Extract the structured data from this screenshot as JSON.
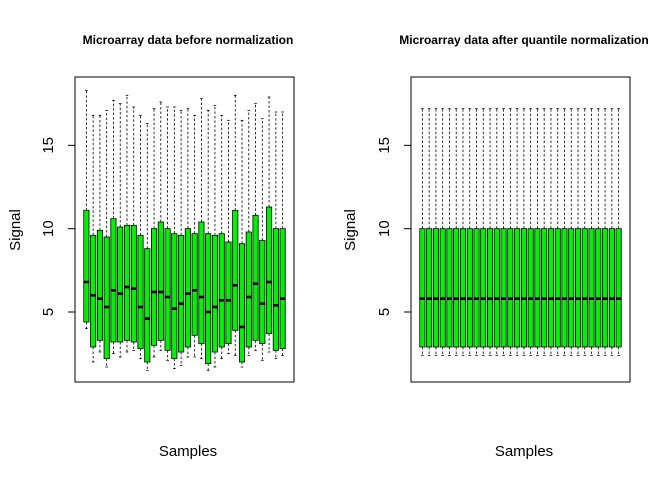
{
  "chart_data": [
    {
      "type": "box",
      "title": "Microarray data before normalization",
      "xlabel": "Samples",
      "ylabel": "Signal",
      "ylim": [
        0.8,
        19.1
      ],
      "yticks": [
        "5",
        "10",
        "15"
      ],
      "box_color": "#00ee00",
      "samples": [
        {
          "lower_whisker": 4.0,
          "q1": 4.4,
          "median": 6.8,
          "q3": 11.1,
          "upper_whisker": 18.3
        },
        {
          "lower_whisker": 2.0,
          "q1": 2.9,
          "median": 6.0,
          "q3": 9.6,
          "upper_whisker": 16.8
        },
        {
          "lower_whisker": 2.6,
          "q1": 3.3,
          "median": 5.8,
          "q3": 9.9,
          "upper_whisker": 16.8
        },
        {
          "lower_whisker": 1.7,
          "q1": 2.2,
          "median": 5.3,
          "q3": 9.5,
          "upper_whisker": 17.1
        },
        {
          "lower_whisker": 2.5,
          "q1": 3.2,
          "median": 6.3,
          "q3": 10.6,
          "upper_whisker": 17.7
        },
        {
          "lower_whisker": 2.3,
          "q1": 3.2,
          "median": 6.1,
          "q3": 10.1,
          "upper_whisker": 17.5
        },
        {
          "lower_whisker": 2.6,
          "q1": 3.3,
          "median": 6.5,
          "q3": 10.2,
          "upper_whisker": 18.0
        },
        {
          "lower_whisker": 2.7,
          "q1": 3.2,
          "median": 6.4,
          "q3": 10.2,
          "upper_whisker": 17.3
        },
        {
          "lower_whisker": 2.2,
          "q1": 2.8,
          "median": 5.3,
          "q3": 9.6,
          "upper_whisker": 16.8
        },
        {
          "lower_whisker": 1.5,
          "q1": 2.0,
          "median": 4.6,
          "q3": 8.8,
          "upper_whisker": 16.3
        },
        {
          "lower_whisker": 2.3,
          "q1": 3.0,
          "median": 6.2,
          "q3": 10.0,
          "upper_whisker": 17.2
        },
        {
          "lower_whisker": 2.7,
          "q1": 3.3,
          "median": 6.2,
          "q3": 10.4,
          "upper_whisker": 17.6
        },
        {
          "lower_whisker": 2.1,
          "q1": 2.7,
          "median": 5.9,
          "q3": 10.0,
          "upper_whisker": 17.3
        },
        {
          "lower_whisker": 1.6,
          "q1": 2.2,
          "median": 5.2,
          "q3": 9.7,
          "upper_whisker": 17.3
        },
        {
          "lower_whisker": 1.8,
          "q1": 2.6,
          "median": 5.5,
          "q3": 9.6,
          "upper_whisker": 17.1
        },
        {
          "lower_whisker": 2.3,
          "q1": 2.9,
          "median": 6.1,
          "q3": 10.0,
          "upper_whisker": 17.2
        },
        {
          "lower_whisker": 2.3,
          "q1": 3.6,
          "median": 6.3,
          "q3": 9.7,
          "upper_whisker": 16.8
        },
        {
          "lower_whisker": 2.2,
          "q1": 3.1,
          "median": 5.9,
          "q3": 10.4,
          "upper_whisker": 17.8
        },
        {
          "lower_whisker": 1.5,
          "q1": 1.9,
          "median": 5.0,
          "q3": 9.7,
          "upper_whisker": 17.1
        },
        {
          "lower_whisker": 1.7,
          "q1": 2.6,
          "median": 5.3,
          "q3": 9.6,
          "upper_whisker": 17.4
        },
        {
          "lower_whisker": 2.2,
          "q1": 2.9,
          "median": 5.7,
          "q3": 9.7,
          "upper_whisker": 16.8
        },
        {
          "lower_whisker": 2.5,
          "q1": 3.1,
          "median": 5.7,
          "q3": 9.2,
          "upper_whisker": 16.5
        },
        {
          "lower_whisker": 2.4,
          "q1": 3.9,
          "median": 6.6,
          "q3": 11.1,
          "upper_whisker": 18.0
        },
        {
          "lower_whisker": 1.7,
          "q1": 2.0,
          "median": 4.1,
          "q3": 9.1,
          "upper_whisker": 16.5
        },
        {
          "lower_whisker": 2.4,
          "q1": 2.9,
          "median": 5.9,
          "q3": 9.8,
          "upper_whisker": 17.1
        },
        {
          "lower_whisker": 2.7,
          "q1": 3.3,
          "median": 6.7,
          "q3": 10.8,
          "upper_whisker": 17.5
        },
        {
          "lower_whisker": 2.1,
          "q1": 3.1,
          "median": 5.5,
          "q3": 9.3,
          "upper_whisker": 16.6
        },
        {
          "lower_whisker": 2.6,
          "q1": 3.7,
          "median": 6.8,
          "q3": 11.3,
          "upper_whisker": 17.9
        },
        {
          "lower_whisker": 2.2,
          "q1": 2.7,
          "median": 5.4,
          "q3": 10.0,
          "upper_whisker": 17.0
        },
        {
          "lower_whisker": 2.4,
          "q1": 2.8,
          "median": 5.8,
          "q3": 10.0,
          "upper_whisker": 17.0
        }
      ]
    },
    {
      "type": "box",
      "title": "Microarray data after quantile normalization",
      "xlabel": "Samples",
      "ylabel": "Signal",
      "ylim": [
        0.8,
        19.1
      ],
      "yticks": [
        "5",
        "10",
        "15"
      ],
      "box_color": "#00ee00",
      "sample_count": 30,
      "lower_whisker": 2.4,
      "q1": 2.9,
      "median": 5.8,
      "q3": 10.0,
      "upper_whisker": 17.2
    }
  ]
}
